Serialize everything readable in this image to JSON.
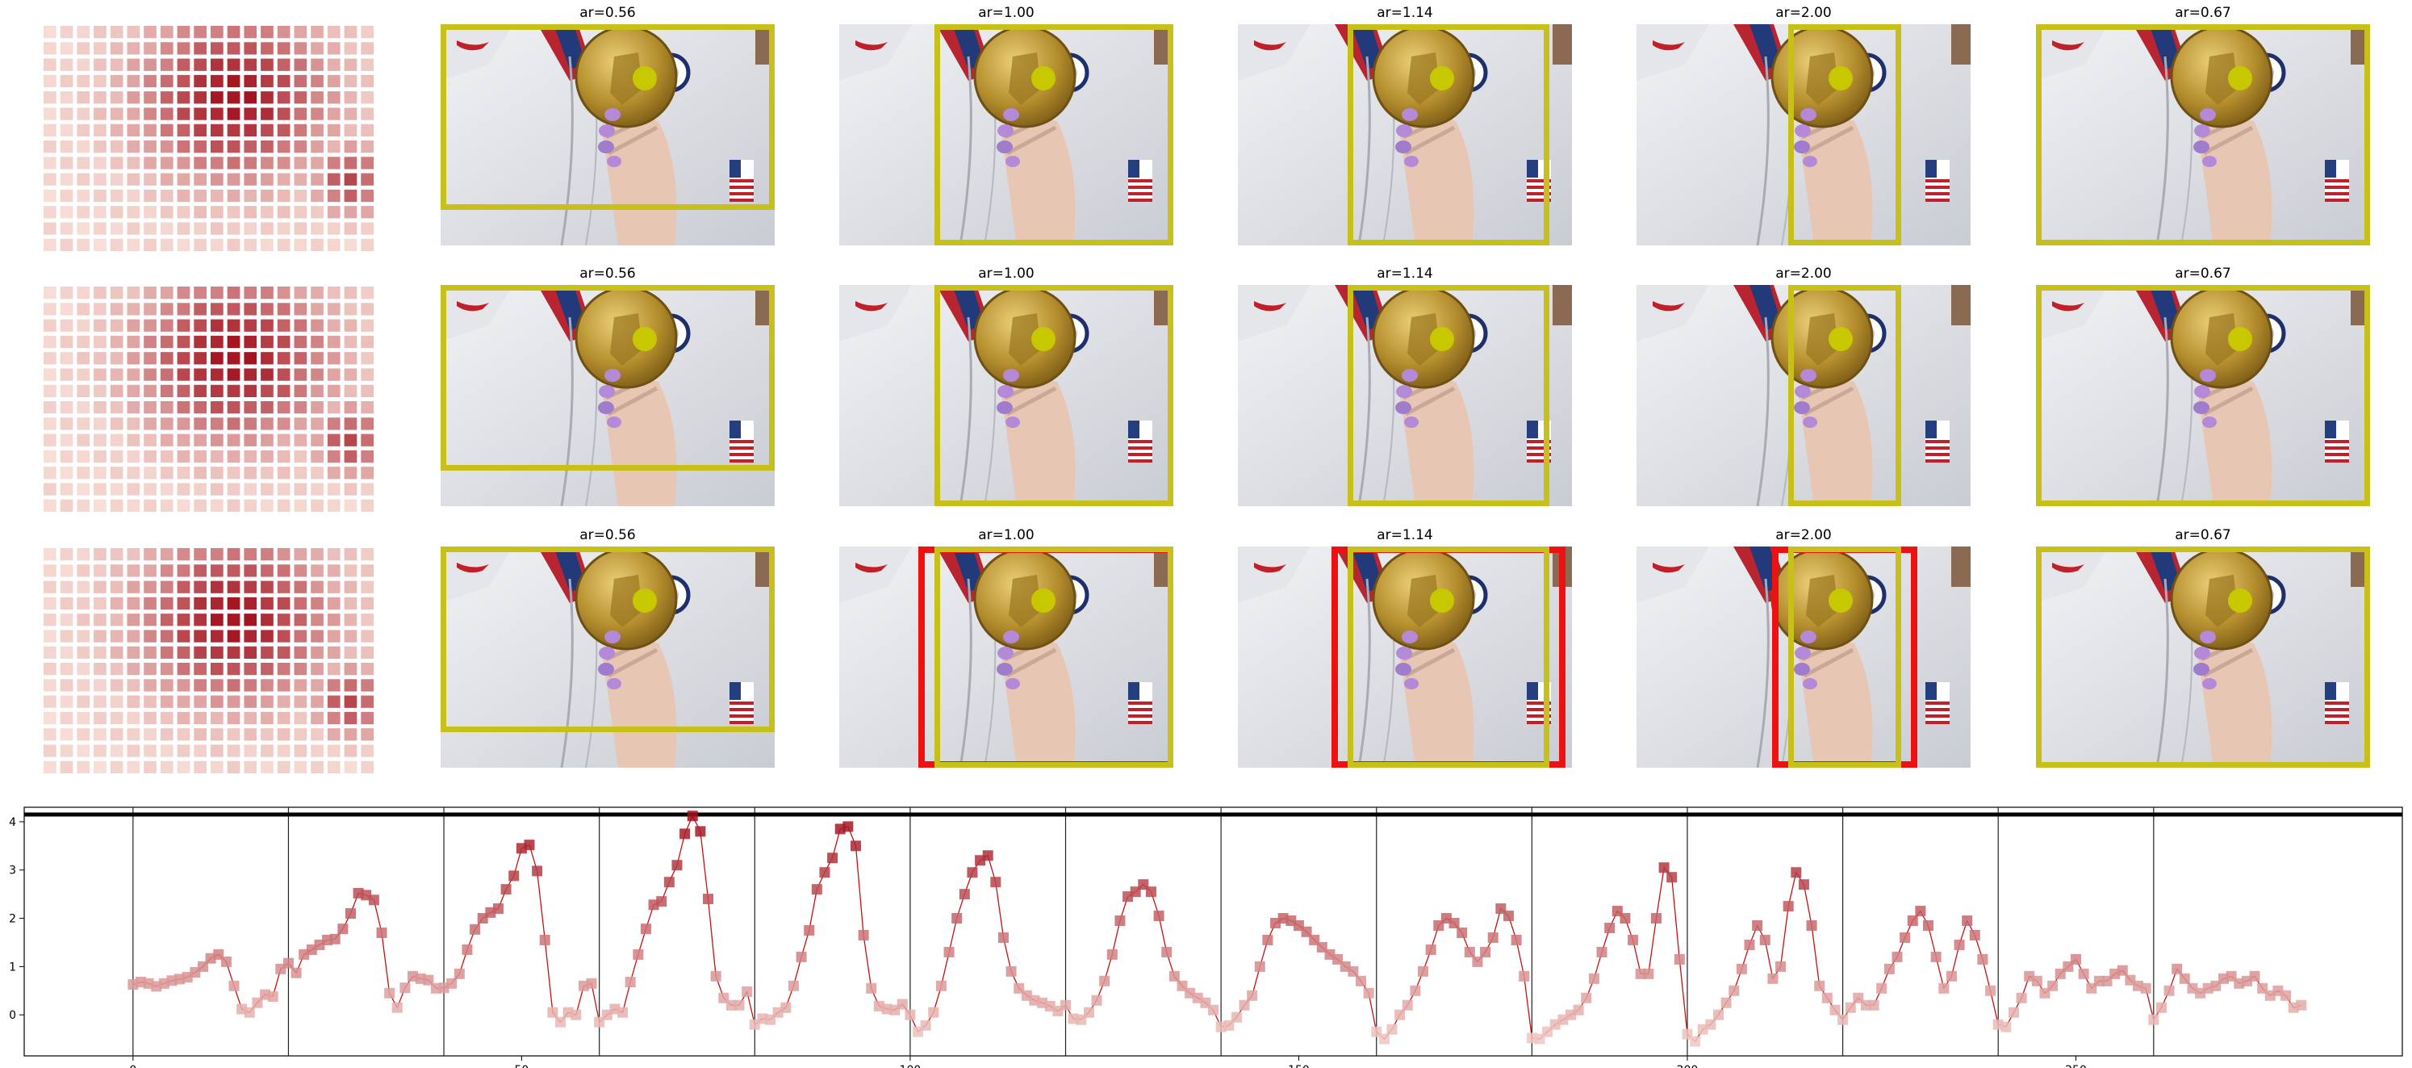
{
  "rows": [
    {
      "panels": [
        {
          "title": "ar=0.56",
          "crop": "wide-bottom-cut",
          "red_boxes": false
        },
        {
          "title": "ar=1.00",
          "crop": "center-right",
          "red_boxes": false
        },
        {
          "title": "ar=1.14",
          "crop": "center",
          "red_boxes": false
        },
        {
          "title": "ar=2.00",
          "crop": "narrow",
          "red_boxes": false
        },
        {
          "title": "ar=0.67",
          "crop": "full",
          "red_boxes": false
        }
      ]
    },
    {
      "panels": [
        {
          "title": "ar=0.56",
          "crop": "wide-bottom-cut",
          "red_boxes": false
        },
        {
          "title": "ar=1.00",
          "crop": "center-right",
          "red_boxes": false
        },
        {
          "title": "ar=1.14",
          "crop": "center",
          "red_boxes": false
        },
        {
          "title": "ar=2.00",
          "crop": "narrow",
          "red_boxes": false
        },
        {
          "title": "ar=0.67",
          "crop": "full",
          "red_boxes": false
        }
      ]
    },
    {
      "panels": [
        {
          "title": "ar=0.56",
          "crop": "wide-bottom-cut",
          "red_boxes": false
        },
        {
          "title": "ar=1.00",
          "crop": "center-right",
          "red_boxes": true
        },
        {
          "title": "ar=1.14",
          "crop": "center",
          "red_boxes": true
        },
        {
          "title": "ar=2.00",
          "crop": "narrow",
          "red_boxes": true
        },
        {
          "title": "ar=0.67",
          "crop": "full",
          "red_boxes": false
        }
      ]
    }
  ],
  "colors": {
    "crop_box": "#c8c01a",
    "red_box": "#ee1111",
    "dot": "#c8c800",
    "line": "#c81010",
    "heat_low": "#fde9e1",
    "heat_high": "#a0101c"
  },
  "chart_data": {
    "type": "line",
    "xlim": [
      -14,
      292
    ],
    "ylim": [
      -0.85,
      4.3
    ],
    "xticks": [
      "0",
      "50",
      "100",
      "150",
      "200",
      "250"
    ],
    "yticks": [
      "0",
      "1",
      "2",
      "3",
      "4"
    ],
    "vlines": [
      0,
      20,
      40,
      60,
      80,
      100,
      120,
      140,
      160,
      180,
      200,
      220,
      240,
      260
    ],
    "hline": 4.15,
    "grid": false,
    "series": [
      {
        "values": [
          0.63,
          0.68,
          0.65,
          0.59,
          0.65,
          0.71,
          0.74,
          0.78,
          0.88,
          1.0,
          1.17,
          1.25,
          1.1,
          0.6,
          0.12,
          0.05,
          0.25,
          0.42,
          0.38,
          0.95,
          1.07,
          0.87,
          1.25,
          1.35,
          1.45,
          1.55,
          1.57,
          1.78,
          2.1,
          2.52,
          2.48,
          2.38,
          1.7,
          0.45,
          0.15,
          0.56,
          0.8,
          0.75,
          0.72,
          0.55,
          0.56,
          0.65,
          0.85,
          1.35,
          1.77,
          2.0,
          2.12,
          2.2,
          2.6,
          2.88,
          3.45,
          3.52,
          2.98,
          1.55,
          0.05,
          -0.15,
          0.05,
          0.0,
          0.6,
          0.65,
          -0.15,
          0.0,
          0.12,
          0.05,
          0.68,
          1.25,
          1.78,
          2.28,
          2.35,
          2.75,
          3.1,
          3.75,
          4.12,
          3.8,
          2.4,
          0.8,
          0.35,
          0.2,
          0.2,
          0.48,
          -0.2,
          -0.08,
          -0.1,
          0.05,
          0.15,
          0.6,
          1.2,
          1.75,
          2.6,
          2.95,
          3.25,
          3.85,
          3.9,
          3.5,
          1.65,
          0.55,
          0.18,
          0.12,
          0.1,
          0.22,
          0.0,
          -0.35,
          -0.22,
          0.05,
          0.6,
          1.3,
          2.0,
          2.5,
          2.95,
          3.2,
          3.3,
          2.75,
          1.6,
          0.9,
          0.55,
          0.4,
          0.3,
          0.25,
          0.18,
          0.08,
          0.2,
          -0.08,
          -0.1,
          0.05,
          0.3,
          0.7,
          1.25,
          1.95,
          2.45,
          2.55,
          2.7,
          2.55,
          2.05,
          1.3,
          0.8,
          0.6,
          0.45,
          0.35,
          0.25,
          0.1,
          -0.25,
          -0.22,
          -0.05,
          0.2,
          0.4,
          1.0,
          1.55,
          1.9,
          2.0,
          1.95,
          1.85,
          1.72,
          1.55,
          1.4,
          1.25,
          1.15,
          1.0,
          0.9,
          0.7,
          0.45,
          -0.35,
          -0.5,
          -0.3,
          0.0,
          0.2,
          0.5,
          0.9,
          1.35,
          1.85,
          2.0,
          1.9,
          1.7,
          1.3,
          1.1,
          1.3,
          1.6,
          2.2,
          2.05,
          1.55,
          0.8,
          -0.48,
          -0.5,
          -0.35,
          -0.2,
          -0.1,
          0.0,
          0.1,
          0.35,
          0.75,
          1.3,
          1.8,
          2.15,
          2.0,
          1.55,
          0.85,
          0.85,
          2.0,
          3.05,
          2.85,
          1.15,
          -0.4,
          -0.55,
          -0.3,
          -0.2,
          0.0,
          0.25,
          0.5,
          0.95,
          1.45,
          1.85,
          1.55,
          0.75,
          1.0,
          2.25,
          2.95,
          2.7,
          1.85,
          0.6,
          0.35,
          0.1,
          -0.1,
          0.15,
          0.35,
          0.2,
          0.2,
          0.55,
          0.95,
          1.2,
          1.6,
          1.95,
          2.15,
          1.85,
          1.2,
          0.55,
          0.8,
          1.45,
          1.95,
          1.65,
          1.15,
          0.5,
          -0.2,
          -0.25,
          0.05,
          0.35,
          0.8,
          0.7,
          0.45,
          0.6,
          0.85,
          1.0,
          1.15,
          0.85,
          0.55,
          0.7,
          0.7,
          0.85,
          0.92,
          0.72,
          0.6,
          0.55,
          -0.1,
          0.15,
          0.5,
          0.95,
          0.75,
          0.55,
          0.45,
          0.55,
          0.6,
          0.75,
          0.8,
          0.65,
          0.7,
          0.8,
          0.55,
          0.4,
          0.5,
          0.4,
          0.15,
          0.2
        ]
      }
    ]
  }
}
